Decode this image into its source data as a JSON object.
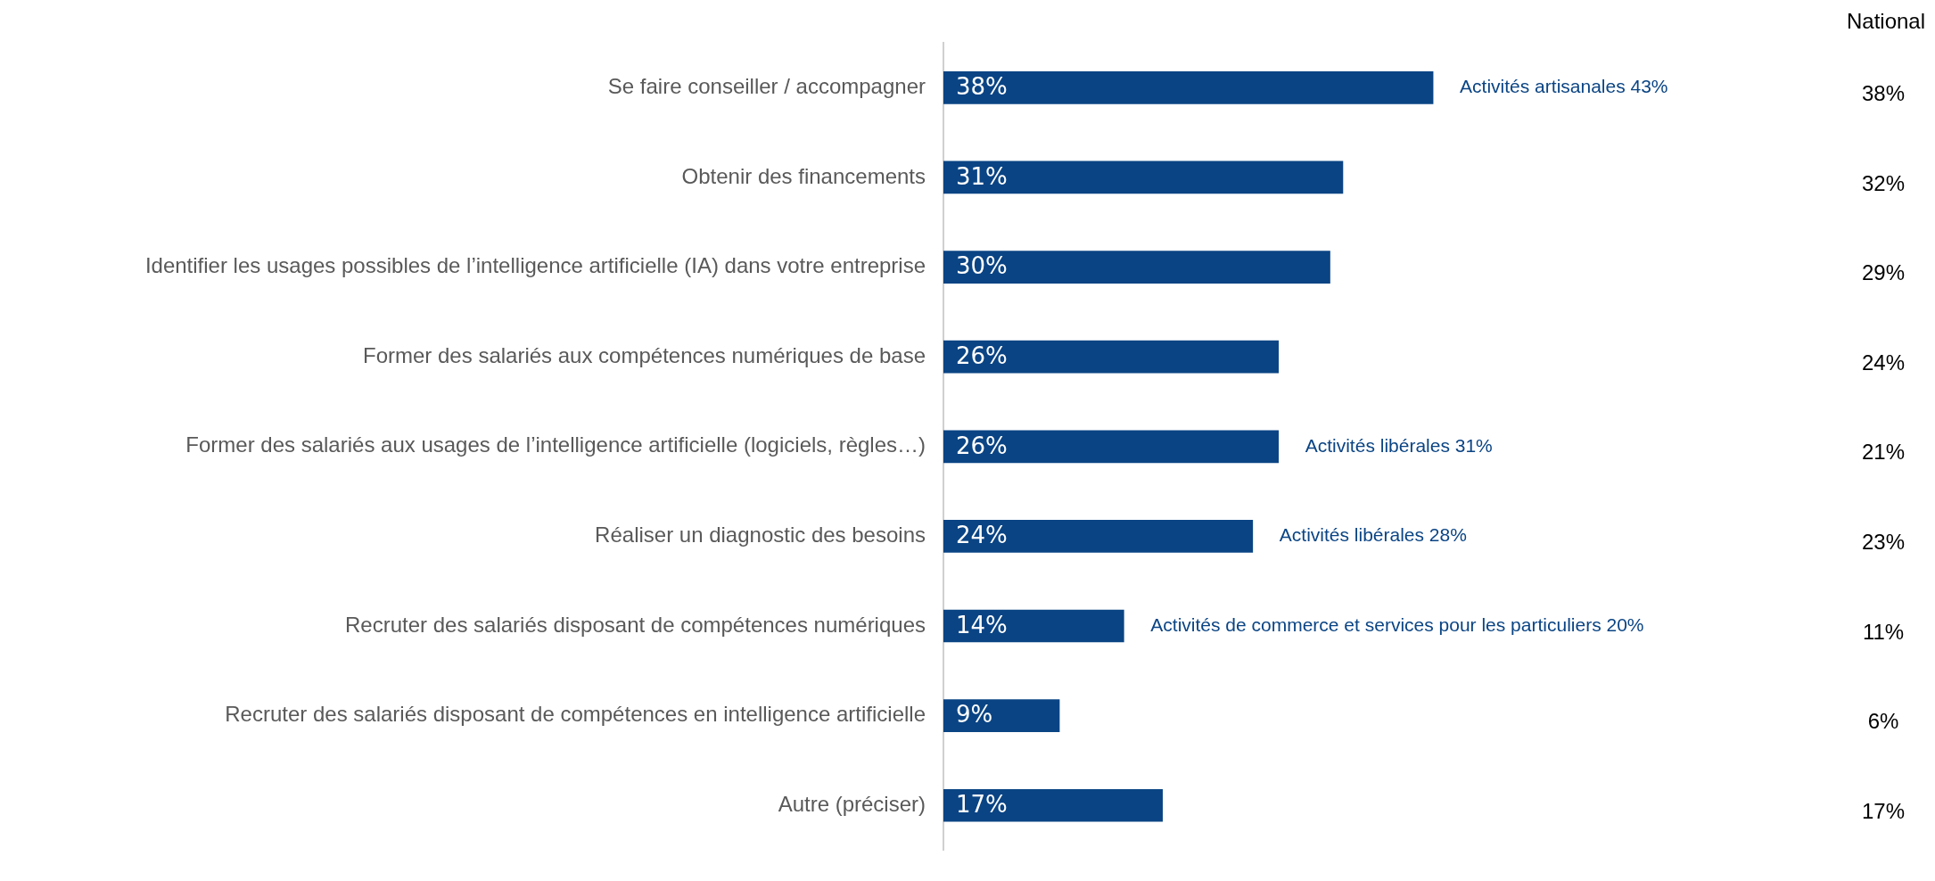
{
  "chart_data": {
    "type": "bar",
    "orientation": "horizontal",
    "categories": [
      "Se faire conseiller / accompagner",
      "Obtenir des financements",
      "Identifier les usages possibles de l’intelligence artificielle (IA) dans votre entreprise",
      "Former des salariés aux compétences numériques de base",
      "Former des salariés aux usages de l’intelligence artificielle (logiciels, règles…)",
      "Réaliser un diagnostic des besoins",
      "Recruter des salariés disposant de compétences numériques",
      "Recruter des salariés disposant de compétences en intelligence artificielle",
      "Autre (préciser)"
    ],
    "series": [
      {
        "color": "#0a4484",
        "values": [
          38,
          31,
          30,
          26,
          26,
          24,
          14,
          9,
          17
        ],
        "value_labels": [
          "38%",
          "31%",
          "30%",
          "26%",
          "26%",
          "24%",
          "14%",
          "9%",
          "17%"
        ]
      }
    ],
    "tick_labels": "y",
    "grid": false,
    "legend": false,
    "annotations": [
      {
        "text": "Activités artisanales 43%",
        "x": 38,
        "y": "Se faire conseiller / accompagner"
      },
      {
        "text": "Activités libérales 31%",
        "x": 26,
        "y": "Former des salariés aux usages de l’intelligence artificielle (logiciels, règles…)"
      },
      {
        "text": "Activités libérales 28%",
        "x": 24,
        "y": "Réaliser un diagnostic des besoins"
      },
      {
        "text": "Activités de commerce et services pour les particuliers 20%",
        "x": 14,
        "y": "Recruter des salariés disposant de compétences numériques"
      },
      "National",
      "38%",
      "32%",
      "29%",
      "24%",
      "21%",
      "23%",
      "11%",
      "6%",
      "17%"
    ]
  }
}
